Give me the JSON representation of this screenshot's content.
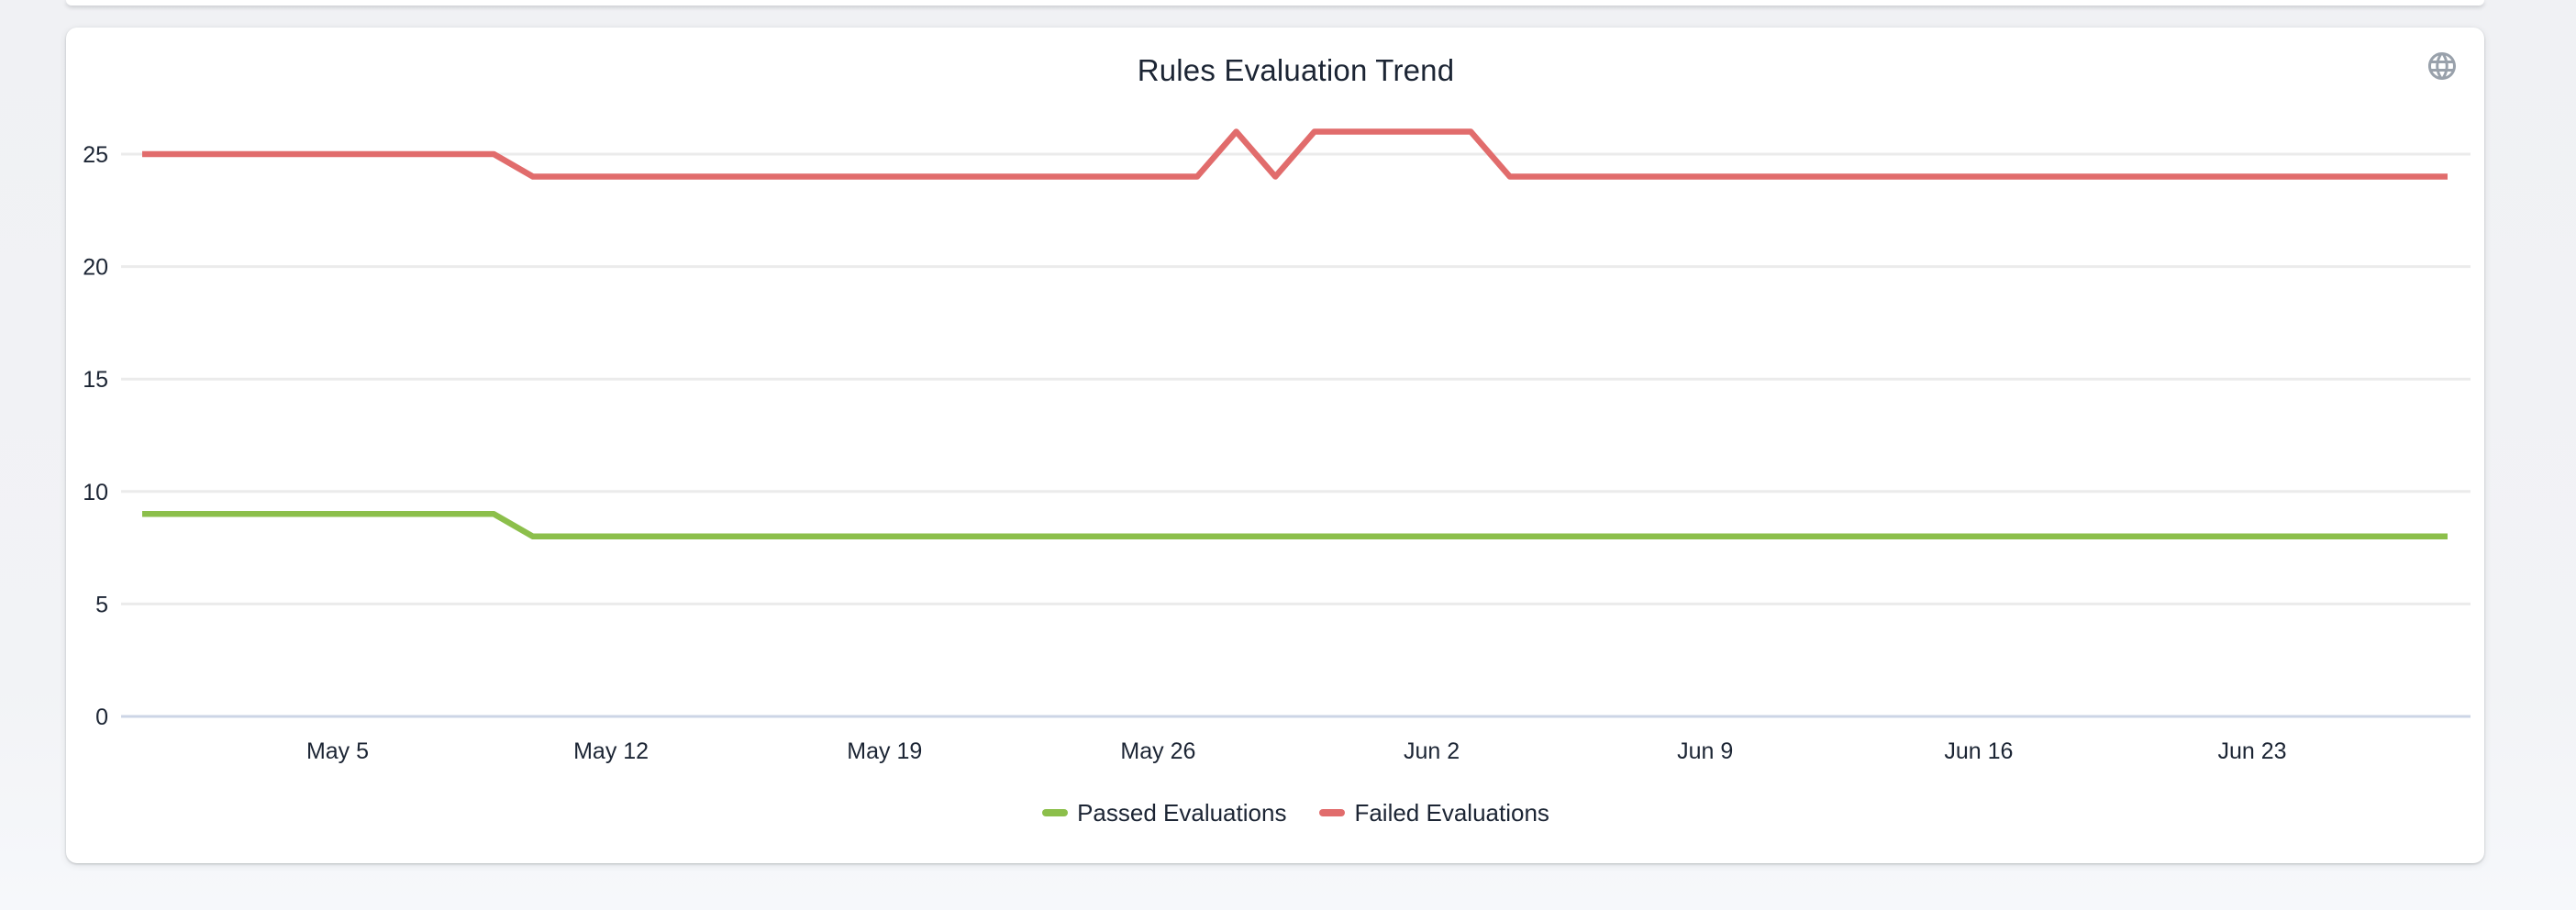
{
  "card": {
    "title": "Rules Evaluation Trend"
  },
  "icons": {
    "globe": "globe-icon"
  },
  "colors": {
    "passed_green": "#8cbf4b",
    "failed_red": "#e16c6c",
    "grid": "#ebebeb",
    "zero_axis": "#ccd5e6",
    "text": "#1c2534",
    "icon_gray": "#99a1ab",
    "card_background": "#ffffff",
    "page_background": "#f1f2f5"
  },
  "chart_data": {
    "type": "line",
    "title": "Rules Evaluation Trend",
    "x": [
      "Apr 30",
      "May 1",
      "May 2",
      "May 3",
      "May 4",
      "May 5",
      "May 6",
      "May 7",
      "May 8",
      "May 9",
      "May 10",
      "May 11",
      "May 12",
      "May 13",
      "May 14",
      "May 15",
      "May 16",
      "May 17",
      "May 18",
      "May 19",
      "May 20",
      "May 21",
      "May 22",
      "May 23",
      "May 24",
      "May 25",
      "May 26",
      "May 27",
      "May 28",
      "May 29",
      "May 30",
      "May 31",
      "Jun 1",
      "Jun 2",
      "Jun 3",
      "Jun 4",
      "Jun 5",
      "Jun 6",
      "Jun 7",
      "Jun 8",
      "Jun 9",
      "Jun 10",
      "Jun 11",
      "Jun 12",
      "Jun 13",
      "Jun 14",
      "Jun 15",
      "Jun 16",
      "Jun 17",
      "Jun 18",
      "Jun 19",
      "Jun 20",
      "Jun 21",
      "Jun 22",
      "Jun 23",
      "Jun 24",
      "Jun 25",
      "Jun 26",
      "Jun 27",
      "Jun 28"
    ],
    "x_tick_labels": [
      "May 5",
      "May 12",
      "May 19",
      "May 26",
      "Jun 2",
      "Jun 9",
      "Jun 16",
      "Jun 23"
    ],
    "y_ticks": [
      0,
      5,
      10,
      15,
      20,
      25
    ],
    "ylim": [
      0,
      27
    ],
    "grid": true,
    "legend_position": "bottom",
    "series": [
      {
        "name": "Passed Evaluations",
        "color": "#8cbf4b",
        "values": [
          9,
          9,
          9,
          9,
          9,
          9,
          9,
          9,
          9,
          9,
          8,
          8,
          8,
          8,
          8,
          8,
          8,
          8,
          8,
          8,
          8,
          8,
          8,
          8,
          8,
          8,
          8,
          8,
          8,
          8,
          8,
          8,
          8,
          8,
          8,
          8,
          8,
          8,
          8,
          8,
          8,
          8,
          8,
          8,
          8,
          8,
          8,
          8,
          8,
          8,
          8,
          8,
          8,
          8,
          8,
          8,
          8,
          8,
          8,
          8
        ]
      },
      {
        "name": "Failed Evaluations",
        "color": "#e16c6c",
        "values": [
          25,
          25,
          25,
          25,
          25,
          25,
          25,
          25,
          25,
          25,
          24,
          24,
          24,
          24,
          24,
          24,
          24,
          24,
          24,
          24,
          24,
          24,
          24,
          24,
          24,
          24,
          24,
          24,
          26,
          24,
          26,
          26,
          26,
          26,
          26,
          24,
          24,
          24,
          24,
          24,
          24,
          24,
          24,
          24,
          24,
          24,
          24,
          24,
          24,
          24,
          24,
          24,
          24,
          24,
          24,
          24,
          24,
          24,
          24,
          24
        ]
      }
    ]
  }
}
